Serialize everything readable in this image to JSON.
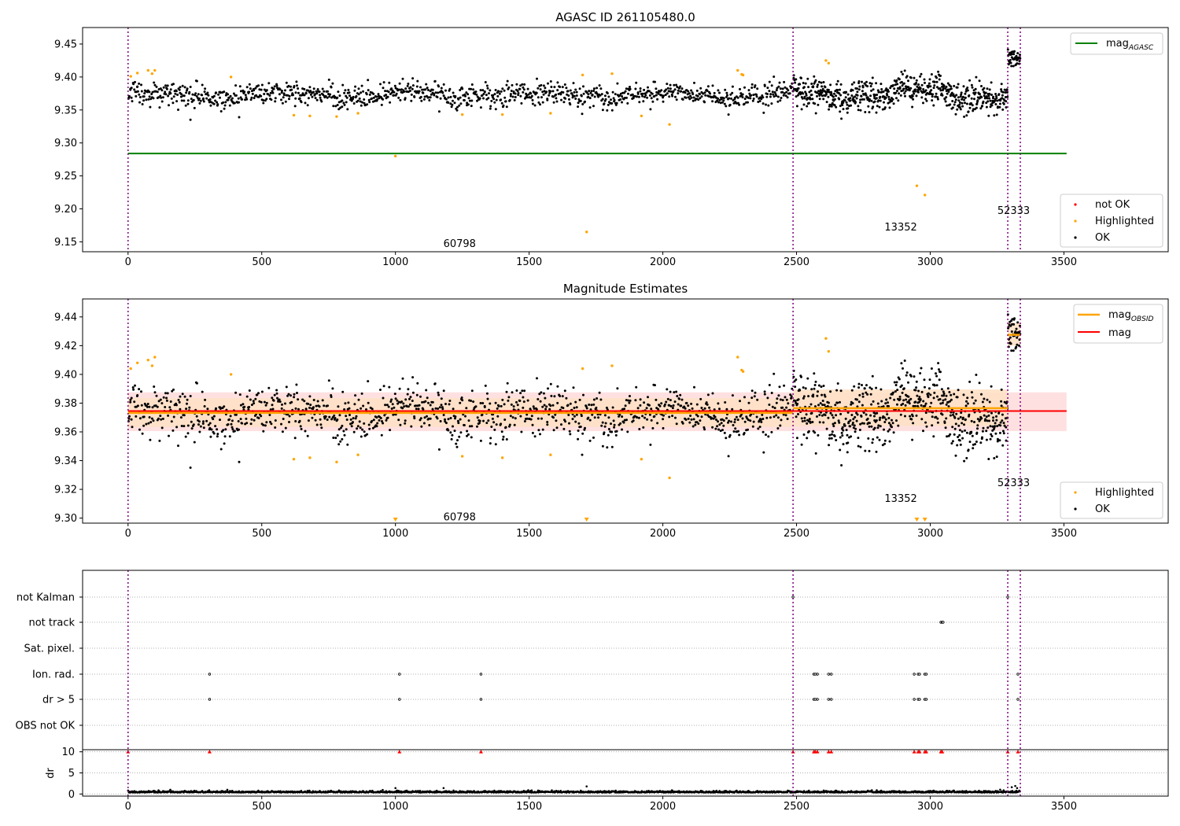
{
  "chart_data": [
    {
      "type": "scatter",
      "title": "AGASC ID 261105480.0",
      "xlabel": "",
      "ylabel": "",
      "xlim": [
        -170,
        3890
      ],
      "ylim": [
        9.135,
        9.475
      ],
      "xticks": [
        "0",
        "500",
        "1000",
        "1500",
        "2000",
        "2500",
        "3000",
        "3500"
      ],
      "yticks": [
        "9.15",
        "9.20",
        "9.25",
        "9.30",
        "9.35",
        "9.40",
        "9.45"
      ],
      "obsid_boundaries": [
        0,
        2487,
        3290,
        3337
      ],
      "obsid_labels": [
        {
          "text": "60798",
          "x": 1240,
          "y": 9.147
        },
        {
          "text": "13352",
          "x": 2890,
          "y": 9.172
        },
        {
          "text": "52333",
          "x": 3312,
          "y": 9.197
        }
      ],
      "series": [
        {
          "name": "mag_AGASC",
          "type": "line",
          "color": "#008000",
          "x": [
            0,
            3510
          ],
          "y": [
            9.284,
            9.284
          ]
        },
        {
          "name": "not OK",
          "color": "#ff0000",
          "points": []
        },
        {
          "name": "Highlighted",
          "color": "#ffa500",
          "points": [
            [
              10,
              9.401
            ],
            [
              35,
              9.406
            ],
            [
              75,
              9.41
            ],
            [
              90,
              9.405
            ],
            [
              100,
              9.41
            ],
            [
              385,
              9.4
            ],
            [
              620,
              9.342
            ],
            [
              680,
              9.341
            ],
            [
              780,
              9.34
            ],
            [
              860,
              9.345
            ],
            [
              1000,
              9.28
            ],
            [
              1250,
              9.343
            ],
            [
              1400,
              9.343
            ],
            [
              1580,
              9.345
            ],
            [
              1700,
              9.403
            ],
            [
              1715,
              9.165
            ],
            [
              1810,
              9.405
            ],
            [
              1920,
              9.341
            ],
            [
              2025,
              9.328
            ],
            [
              2280,
              9.41
            ],
            [
              2295,
              9.404
            ],
            [
              2300,
              9.403
            ],
            [
              2610,
              9.425
            ],
            [
              2620,
              9.421
            ],
            [
              2950,
              9.235
            ],
            [
              2980,
              9.221
            ]
          ]
        },
        {
          "name": "OK",
          "color": "#000000",
          "segments": [
            {
              "x0": 0,
              "x1": 2487,
              "n": 1150,
              "base": 9.373,
              "sd": 0.0085,
              "wave": 0.004
            },
            {
              "x0": 2487,
              "x1": 3290,
              "n": 620,
              "base": 9.375,
              "sd": 0.011,
              "wave": 0.008
            },
            {
              "x0": 3290,
              "x1": 3337,
              "n": 45,
              "base": 9.428,
              "sd": 0.007,
              "wave": 0
            }
          ]
        }
      ],
      "legend_top": [
        "mag_AGASC"
      ],
      "legend_bottom": [
        "not OK",
        "Highlighted",
        "OK"
      ],
      "legend_labels": {
        "mag_AGASC": "mag",
        "mag_AGASC_sub": "AGASC"
      }
    },
    {
      "type": "scatter",
      "title": "Magnitude Estimates",
      "xlabel": "",
      "ylabel": "",
      "xlim": [
        -170,
        3890
      ],
      "ylim": [
        9.2965,
        9.4525
      ],
      "xticks": [
        "0",
        "500",
        "1000",
        "1500",
        "2000",
        "2500",
        "3000",
        "3500"
      ],
      "yticks": [
        "9.30",
        "9.32",
        "9.34",
        "9.36",
        "9.38",
        "9.40",
        "9.42",
        "9.44"
      ],
      "obsid_boundaries": [
        0,
        2487,
        3290,
        3337
      ],
      "obsid_labels": [
        {
          "text": "60798",
          "x": 1240,
          "y": 9.3005
        },
        {
          "text": "13352",
          "x": 2890,
          "y": 9.3135
        },
        {
          "text": "52333",
          "x": 3312,
          "y": 9.3245
        }
      ],
      "bands": [
        {
          "name": "mag ± sd",
          "color": "#ffdddd",
          "x0": 0,
          "x1": 3510,
          "y0": 9.3605,
          "y1": 9.3875
        },
        {
          "name": "mag_OBSID ± sd",
          "color": "#ffe1c6",
          "x0": 0,
          "x1": 2487,
          "y0": 9.3635,
          "y1": 9.3835
        },
        {
          "name": "mag_OBSID ± sd",
          "color": "#ffe1c6",
          "x0": 2487,
          "x1": 3290,
          "y0": 9.364,
          "y1": 9.3895
        },
        {
          "name": "mag_OBSID ± sd",
          "color": "#ffe1c6",
          "x0": 3290,
          "x1": 3337,
          "y0": 9.42,
          "y1": 9.436
        }
      ],
      "series": [
        {
          "name": "mag",
          "type": "line",
          "color": "#ff0000",
          "x": [
            0,
            3510
          ],
          "y": [
            9.3745,
            9.3745
          ]
        },
        {
          "name": "mag_OBSID",
          "type": "step",
          "color": "#ffa500",
          "steps": [
            [
              0,
              2487,
              9.3732
            ],
            [
              2487,
              3290,
              9.3765
            ],
            [
              3290,
              3337,
              9.4275
            ]
          ]
        },
        {
          "name": "Highlighted",
          "color": "#ffa500",
          "points": [
            [
              10,
              9.404
            ],
            [
              35,
              9.408
            ],
            [
              75,
              9.41
            ],
            [
              90,
              9.406
            ],
            [
              100,
              9.412
            ],
            [
              385,
              9.4
            ],
            [
              620,
              9.341
            ],
            [
              680,
              9.342
            ],
            [
              780,
              9.339
            ],
            [
              860,
              9.344
            ],
            [
              1250,
              9.343
            ],
            [
              1400,
              9.342
            ],
            [
              1580,
              9.344
            ],
            [
              1700,
              9.404
            ],
            [
              1810,
              9.406
            ],
            [
              1920,
              9.341
            ],
            [
              2025,
              9.328
            ],
            [
              2280,
              9.412
            ],
            [
              2295,
              9.403
            ],
            [
              2300,
              9.402
            ],
            [
              2610,
              9.425
            ],
            [
              2620,
              9.416
            ]
          ]
        },
        {
          "name": "Highlighted (off-axis, below)",
          "color": "#ffa500",
          "markers": "triangle-down",
          "x": [
            1000,
            1715,
            2950,
            2980
          ]
        },
        {
          "name": "OK",
          "color": "#000000",
          "segments": [
            {
              "x0": 0,
              "x1": 2487,
              "n": 1150,
              "base": 9.373,
              "sd": 0.0085,
              "wave": 0.004
            },
            {
              "x0": 2487,
              "x1": 3290,
              "n": 620,
              "base": 9.375,
              "sd": 0.011,
              "wave": 0.008
            },
            {
              "x0": 3290,
              "x1": 3337,
              "n": 45,
              "base": 9.428,
              "sd": 0.007,
              "wave": 0
            }
          ]
        }
      ],
      "legend_top": [
        "mag_OBSID",
        "mag"
      ],
      "legend_bottom": [
        "Highlighted",
        "OK"
      ],
      "legend_labels": {
        "mag_OBSID": "mag",
        "mag_OBSID_sub": "OBSID",
        "mag": "mag"
      }
    },
    {
      "type": "scatter",
      "title": "",
      "xlabel": "",
      "ylabel": "dr",
      "xlim": [
        -170,
        3890
      ],
      "xticks": [
        "0",
        "500",
        "1000",
        "1500",
        "2000",
        "2500",
        "3000",
        "3500"
      ],
      "obsid_boundaries": [
        0,
        2487,
        3290,
        3337
      ],
      "flag_rows": [
        "not Kalman",
        "not track",
        "Sat. pixel.",
        "Ion. rad.",
        "dr > 5",
        "OBS not OK"
      ],
      "flags": {
        "not Kalman": [
          2487,
          3290
        ],
        "not track": [
          3040,
          3045,
          3048
        ],
        "Sat. pixel.": [],
        "Ion. rad.": [
          305,
          1015,
          1320,
          2565,
          2570,
          2578,
          2620,
          2630,
          2940,
          2955,
          2960,
          2980,
          2985,
          3328
        ],
        "dr > 5": [
          305,
          1015,
          1320,
          2565,
          2570,
          2578,
          2620,
          2630,
          2940,
          2955,
          2960,
          2980,
          2985,
          3328
        ],
        "OBS not OK": []
      },
      "dr_yticks": [
        "0",
        "5",
        "10"
      ],
      "dr_ylim": [
        -0.5,
        10.5
      ],
      "dr_clipped_x": [
        0,
        305,
        1015,
        1320,
        2487,
        2565,
        2570,
        2578,
        2620,
        2630,
        2940,
        2955,
        2960,
        2980,
        2985,
        3040,
        3045,
        3290,
        3328
      ],
      "dr_series": {
        "name": "dr",
        "color": "#000000",
        "x0": 0,
        "x1": 3337,
        "n": 1815,
        "base": 0.35,
        "sd": 0.18
      },
      "dr_outliers": [
        [
          1000,
          1.4
        ],
        [
          1180,
          1.4
        ],
        [
          1715,
          1.8
        ],
        [
          2800,
          0.9
        ],
        [
          3305,
          1.6
        ],
        [
          3318,
          1.9
        ],
        [
          3325,
          1.4
        ]
      ]
    }
  ]
}
